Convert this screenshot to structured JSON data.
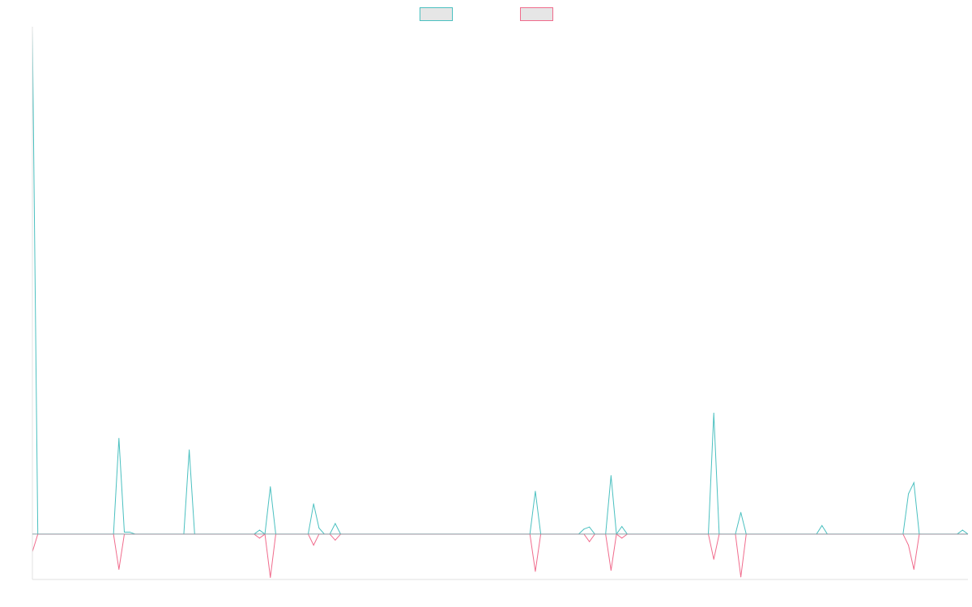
{
  "chart_data": {
    "type": "line",
    "title": "",
    "xlabel": "",
    "ylabel": "",
    "grid": false,
    "legend_position": "top-center",
    "ylim": [
      -0.09,
      1.0
    ],
    "baseline": 0,
    "series": [
      {
        "name": "",
        "color": "#4bc0c0",
        "fill": "#e6e6e6",
        "values": [
          1.0,
          0,
          0,
          0,
          0,
          0,
          0,
          0,
          0,
          0,
          0,
          0,
          0,
          0,
          0,
          0,
          0.19,
          0.004,
          0.004,
          0,
          0,
          0,
          0,
          0,
          0,
          0,
          0,
          0,
          0,
          0.167,
          0,
          0,
          0,
          0,
          0,
          0,
          0,
          0,
          0,
          0,
          0,
          0,
          0.008,
          0,
          0.094,
          0,
          0,
          0,
          0,
          0,
          0,
          0,
          0.06,
          0.012,
          0,
          0,
          0.021,
          0,
          0,
          0,
          0,
          0,
          0,
          0,
          0,
          0,
          0,
          0,
          0,
          0,
          0,
          0,
          0,
          0,
          0,
          0,
          0,
          0,
          0,
          0,
          0,
          0,
          0,
          0,
          0,
          0,
          0,
          0,
          0,
          0,
          0,
          0,
          0,
          0.085,
          0,
          0,
          0,
          0,
          0,
          0,
          0,
          0,
          0.01,
          0.014,
          0,
          0,
          0,
          0.116,
          0,
          0.015,
          0,
          0,
          0,
          0,
          0,
          0,
          0,
          0,
          0,
          0,
          0,
          0,
          0,
          0,
          0,
          0,
          0.24,
          0,
          0,
          0,
          0,
          0.043,
          0,
          0,
          0,
          0,
          0,
          0,
          0,
          0,
          0,
          0,
          0,
          0,
          0,
          0,
          0.017,
          0,
          0,
          0,
          0,
          0,
          0,
          0,
          0,
          0,
          0,
          0,
          0,
          0,
          0,
          0,
          0.08,
          0.102,
          0,
          0,
          0,
          0,
          0,
          0,
          0,
          0,
          0.008,
          0
        ]
      },
      {
        "name": "",
        "color": "#f06b8c",
        "fill": "#e6e6e6",
        "values": [
          -0.035,
          0,
          0,
          0,
          0,
          0,
          0,
          0,
          0,
          0,
          0,
          0,
          0,
          0,
          0,
          0,
          -0.07,
          0,
          0,
          0,
          0,
          0,
          0,
          0,
          0,
          0,
          0,
          0,
          0,
          0,
          0,
          0,
          0,
          0,
          0,
          0,
          0,
          0,
          0,
          0,
          0,
          0,
          -0.008,
          0,
          -0.086,
          0,
          0,
          0,
          0,
          0,
          0,
          0,
          -0.022,
          0,
          0,
          0,
          -0.012,
          0,
          0,
          0,
          0,
          0,
          0,
          0,
          0,
          0,
          0,
          0,
          0,
          0,
          0,
          0,
          0,
          0,
          0,
          0,
          0,
          0,
          0,
          0,
          0,
          0,
          0,
          0,
          0,
          0,
          0,
          0,
          0,
          0,
          0,
          0,
          0,
          -0.074,
          0,
          0,
          0,
          0,
          0,
          0,
          0,
          0,
          0,
          -0.015,
          0,
          0,
          0,
          -0.072,
          0,
          -0.008,
          0,
          0,
          0,
          0,
          0,
          0,
          0,
          0,
          0,
          0,
          0,
          0,
          0,
          0,
          0,
          0,
          -0.05,
          0,
          0,
          0,
          0,
          -0.085,
          0,
          0,
          0,
          0,
          0,
          0,
          0,
          0,
          0,
          0,
          0,
          0,
          0,
          0,
          0,
          0,
          0,
          0,
          0,
          0,
          0,
          0,
          0,
          0,
          0,
          0,
          0,
          0,
          0,
          0,
          -0.022,
          -0.07,
          0,
          0,
          0,
          0,
          0,
          0,
          0,
          0,
          0,
          0
        ]
      }
    ]
  }
}
